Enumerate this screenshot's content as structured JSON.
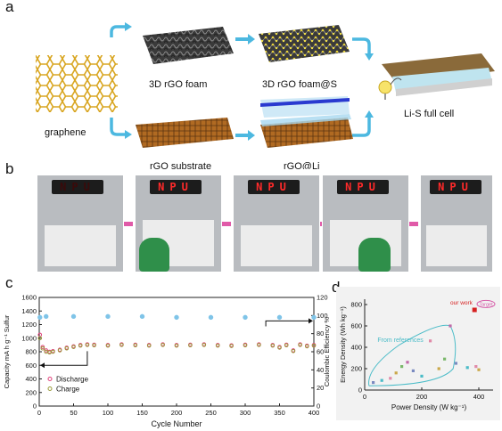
{
  "panel_a": {
    "label": "a",
    "graphene": "graphene",
    "foam": "3D rGO foam",
    "foam_s": "3D rGO foam@S",
    "full_cell": "Li-S full cell",
    "substrate": "rGO substrate",
    "rgo_li": "rGO@Li"
  },
  "panel_b": {
    "label": "b",
    "led_text": [
      "N",
      "P",
      "U"
    ]
  },
  "panel_c": {
    "label": "c",
    "chart_data": {
      "type": "scatter",
      "xlabel": "Cycle Number",
      "ylabel_left": "Capacity mA h g⁻¹ Sulfur",
      "ylabel_right": "Coulombic Efficiency %",
      "xlim": [
        0,
        400
      ],
      "ylim_left": [
        0,
        1600
      ],
      "ylim_right": [
        0,
        120
      ],
      "xticks": [
        "0",
        "50",
        "100",
        "150",
        "200",
        "250",
        "300",
        "350",
        "400"
      ],
      "yticks_left": [
        "0",
        "200",
        "400",
        "600",
        "800",
        "1000",
        "1200",
        "1400",
        "1600"
      ],
      "yticks_right": [
        "0",
        "20",
        "40",
        "60",
        "80",
        "100",
        "120"
      ],
      "legend": [
        "Discharge",
        "Charge"
      ],
      "series": [
        {
          "name": "Discharge",
          "color": "#e0407a",
          "x": [
            1,
            5,
            10,
            15,
            20,
            30,
            40,
            50,
            60,
            70,
            80,
            100,
            120,
            140,
            160,
            180,
            200,
            220,
            240,
            260,
            280,
            300,
            320,
            340,
            350,
            360,
            370,
            380,
            390,
            400
          ],
          "values": [
            1050,
            870,
            820,
            800,
            810,
            830,
            860,
            880,
            900,
            910,
            905,
            900,
            910,
            905,
            900,
            910,
            900,
            905,
            910,
            900,
            895,
            905,
            910,
            900,
            870,
            905,
            820,
            910,
            890,
            900
          ]
        },
        {
          "name": "Charge",
          "color": "#9a9a3a",
          "x": [
            1,
            5,
            10,
            15,
            20,
            30,
            40,
            50,
            60,
            70,
            80,
            100,
            120,
            140,
            160,
            180,
            200,
            220,
            240,
            260,
            280,
            300,
            320,
            340,
            350,
            360,
            370,
            380,
            390,
            400
          ],
          "values": [
            1000,
            850,
            800,
            790,
            800,
            820,
            850,
            870,
            890,
            900,
            895,
            890,
            900,
            895,
            890,
            900,
            890,
            895,
            900,
            890,
            885,
            895,
            900,
            890,
            860,
            895,
            810,
            900,
            880,
            890
          ]
        },
        {
          "name": "Coulombic Efficiency",
          "color": "#7fc4e8",
          "x": [
            1,
            10,
            50,
            100,
            150,
            200,
            250,
            300,
            350,
            400
          ],
          "values": [
            98,
            99,
            99,
            99,
            99,
            98,
            98,
            98,
            98,
            98
          ]
        }
      ]
    }
  },
  "panel_d": {
    "label": "d",
    "chart_data": {
      "type": "scatter",
      "xlabel": "Power Density (W kg⁻¹)",
      "ylabel": "Energy Density (Wh kg⁻¹)",
      "xlim": [
        0,
        450
      ],
      "ylim": [
        0,
        850
      ],
      "xticks": [
        "0",
        "200",
        "400"
      ],
      "yticks": [
        "0",
        "200",
        "400",
        "600",
        "800"
      ],
      "annotation_our_work": "our work",
      "annotation_target": "Target",
      "annotation_refs": "From references",
      "series": [
        {
          "name": "our work",
          "color": "#d62020",
          "x": [
            385
          ],
          "values": [
            750
          ]
        },
        {
          "name": "From references",
          "color": "#7a8ac0",
          "x": [
            30,
            60,
            90,
            110,
            130,
            150,
            170,
            200,
            230,
            260,
            280,
            300,
            320,
            360,
            390,
            400
          ],
          "values": [
            70,
            90,
            110,
            160,
            220,
            260,
            180,
            130,
            460,
            200,
            290,
            600,
            250,
            210,
            220,
            190
          ]
        }
      ]
    }
  }
}
